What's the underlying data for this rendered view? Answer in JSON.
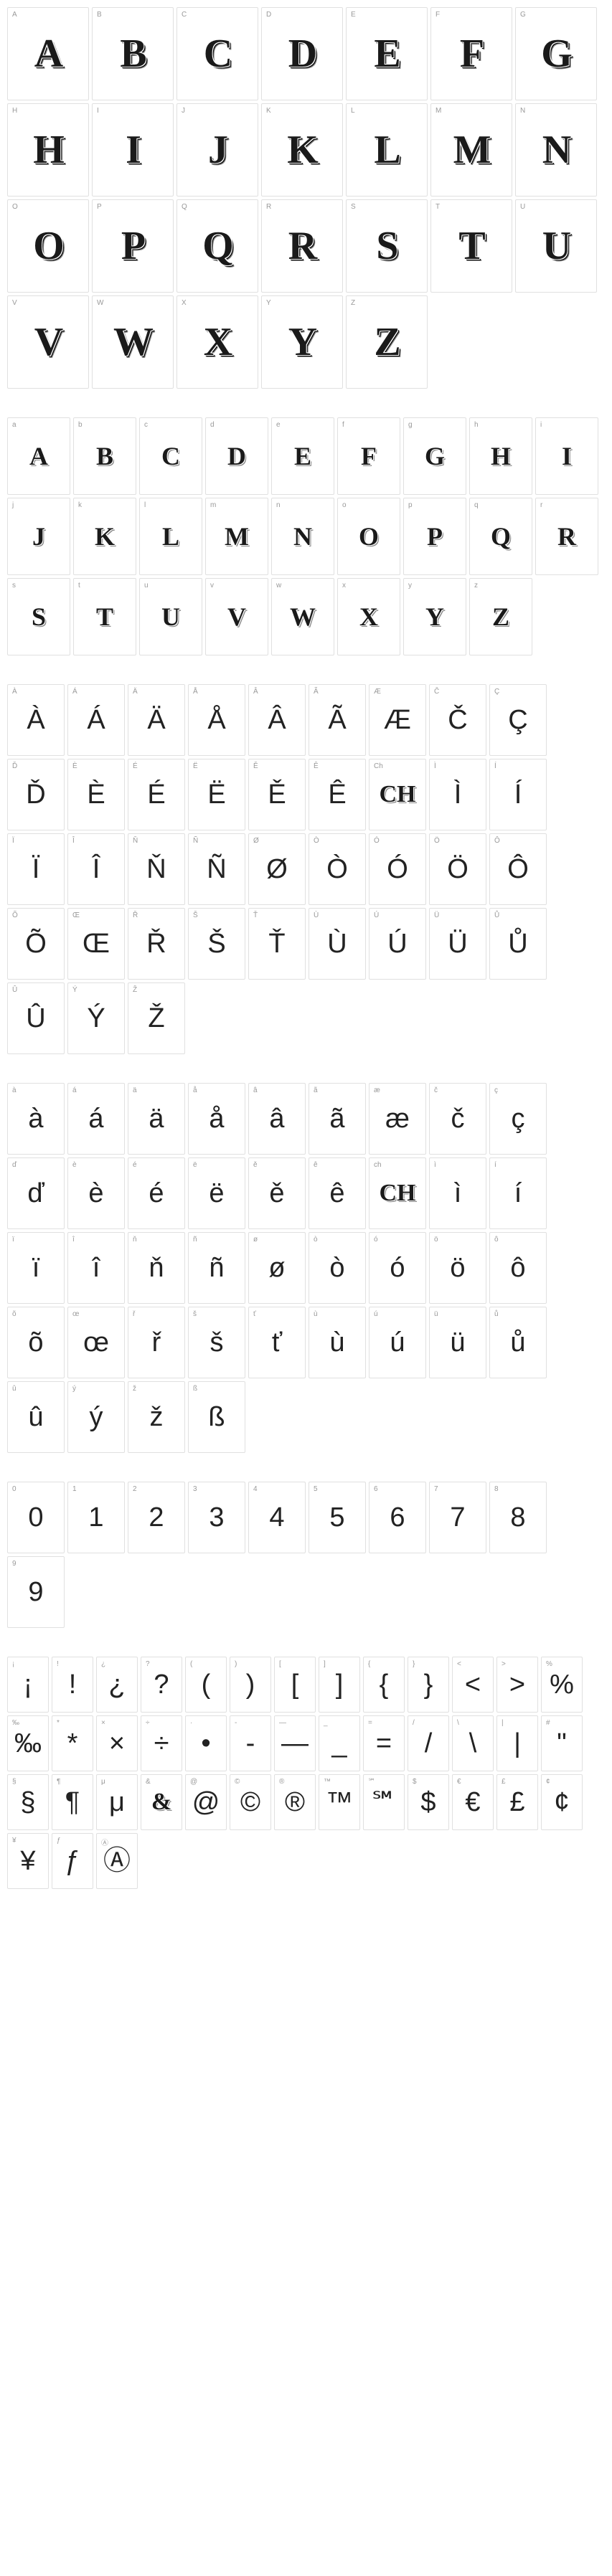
{
  "sections": [
    {
      "id": "uppercase",
      "cell_class": "cell-large",
      "glyph_class": "glyph-large",
      "cells": [
        {
          "label": "A",
          "glyph": "A"
        },
        {
          "label": "B",
          "glyph": "B"
        },
        {
          "label": "C",
          "glyph": "C"
        },
        {
          "label": "D",
          "glyph": "D"
        },
        {
          "label": "E",
          "glyph": "E"
        },
        {
          "label": "F",
          "glyph": "F"
        },
        {
          "label": "G",
          "glyph": "G"
        },
        {
          "label": "H",
          "glyph": "H"
        },
        {
          "label": "I",
          "glyph": "I"
        },
        {
          "label": "J",
          "glyph": "J"
        },
        {
          "label": "K",
          "glyph": "K"
        },
        {
          "label": "L",
          "glyph": "L"
        },
        {
          "label": "M",
          "glyph": "M"
        },
        {
          "label": "N",
          "glyph": "N"
        },
        {
          "label": "O",
          "glyph": "O"
        },
        {
          "label": "P",
          "glyph": "P"
        },
        {
          "label": "Q",
          "glyph": "Q"
        },
        {
          "label": "R",
          "glyph": "R"
        },
        {
          "label": "S",
          "glyph": "S"
        },
        {
          "label": "T",
          "glyph": "T"
        },
        {
          "label": "U",
          "glyph": "U"
        },
        {
          "label": "V",
          "glyph": "V"
        },
        {
          "label": "W",
          "glyph": "W"
        },
        {
          "label": "X",
          "glyph": "X"
        },
        {
          "label": "Y",
          "glyph": "Y"
        },
        {
          "label": "Z",
          "glyph": "Z"
        }
      ]
    },
    {
      "id": "lowercase",
      "cell_class": "cell-med",
      "glyph_class": "glyph-med",
      "cells": [
        {
          "label": "a",
          "glyph": "A"
        },
        {
          "label": "b",
          "glyph": "B"
        },
        {
          "label": "c",
          "glyph": "C"
        },
        {
          "label": "d",
          "glyph": "D"
        },
        {
          "label": "e",
          "glyph": "E"
        },
        {
          "label": "f",
          "glyph": "F"
        },
        {
          "label": "g",
          "glyph": "G"
        },
        {
          "label": "h",
          "glyph": "H"
        },
        {
          "label": "i",
          "glyph": "I"
        },
        {
          "label": "j",
          "glyph": "J"
        },
        {
          "label": "k",
          "glyph": "K"
        },
        {
          "label": "l",
          "glyph": "L"
        },
        {
          "label": "m",
          "glyph": "M"
        },
        {
          "label": "n",
          "glyph": "N"
        },
        {
          "label": "o",
          "glyph": "O"
        },
        {
          "label": "p",
          "glyph": "P"
        },
        {
          "label": "q",
          "glyph": "Q"
        },
        {
          "label": "r",
          "glyph": "R"
        },
        {
          "label": "s",
          "glyph": "S"
        },
        {
          "label": "t",
          "glyph": "T"
        },
        {
          "label": "u",
          "glyph": "U"
        },
        {
          "label": "v",
          "glyph": "V"
        },
        {
          "label": "w",
          "glyph": "W"
        },
        {
          "label": "x",
          "glyph": "X"
        },
        {
          "label": "y",
          "glyph": "Y"
        },
        {
          "label": "z",
          "glyph": "Z"
        }
      ]
    },
    {
      "id": "accented-upper",
      "cell_class": "cell-small",
      "glyph_class": "glyph-plain",
      "cells": [
        {
          "label": "À",
          "glyph": "À"
        },
        {
          "label": "Á",
          "glyph": "Á"
        },
        {
          "label": "Ä",
          "glyph": "Ä"
        },
        {
          "label": "Å",
          "glyph": "Å"
        },
        {
          "label": "Â",
          "glyph": "Â"
        },
        {
          "label": "Ã",
          "glyph": "Ã"
        },
        {
          "label": "Æ",
          "glyph": "Æ"
        },
        {
          "label": "Č",
          "glyph": "Č"
        },
        {
          "label": "Ç",
          "glyph": "Ç"
        },
        {
          "label": "Ď",
          "glyph": "Ď"
        },
        {
          "label": "È",
          "glyph": "È"
        },
        {
          "label": "É",
          "glyph": "É"
        },
        {
          "label": "Ë",
          "glyph": "Ë"
        },
        {
          "label": "Ě",
          "glyph": "Ě"
        },
        {
          "label": "Ê",
          "glyph": "Ê"
        },
        {
          "label": "Ch",
          "glyph": "CH",
          "decorated": true
        },
        {
          "label": "Ì",
          "glyph": "Ì"
        },
        {
          "label": "Í",
          "glyph": "Í"
        },
        {
          "label": "Ï",
          "glyph": "Ï"
        },
        {
          "label": "Î",
          "glyph": "Î"
        },
        {
          "label": "Ň",
          "glyph": "Ň"
        },
        {
          "label": "Ñ",
          "glyph": "Ñ"
        },
        {
          "label": "Ø",
          "glyph": "Ø"
        },
        {
          "label": "Ò",
          "glyph": "Ò"
        },
        {
          "label": "Ó",
          "glyph": "Ó"
        },
        {
          "label": "Ö",
          "glyph": "Ö"
        },
        {
          "label": "Ô",
          "glyph": "Ô"
        },
        {
          "label": "Õ",
          "glyph": "Õ"
        },
        {
          "label": "Œ",
          "glyph": "Œ"
        },
        {
          "label": "Ř",
          "glyph": "Ř"
        },
        {
          "label": "Š",
          "glyph": "Š"
        },
        {
          "label": "Ť",
          "glyph": "Ť"
        },
        {
          "label": "Ù",
          "glyph": "Ù"
        },
        {
          "label": "Ú",
          "glyph": "Ú"
        },
        {
          "label": "Ü",
          "glyph": "Ü"
        },
        {
          "label": "Ů",
          "glyph": "Ů"
        },
        {
          "label": "Û",
          "glyph": "Û"
        },
        {
          "label": "Ý",
          "glyph": "Ý"
        },
        {
          "label": "Ž",
          "glyph": "Ž"
        }
      ]
    },
    {
      "id": "accented-lower",
      "cell_class": "cell-small",
      "glyph_class": "glyph-plain",
      "cells": [
        {
          "label": "à",
          "glyph": "à"
        },
        {
          "label": "á",
          "glyph": "á"
        },
        {
          "label": "ä",
          "glyph": "ä"
        },
        {
          "label": "å",
          "glyph": "å"
        },
        {
          "label": "â",
          "glyph": "â"
        },
        {
          "label": "ã",
          "glyph": "ã"
        },
        {
          "label": "æ",
          "glyph": "æ"
        },
        {
          "label": "č",
          "glyph": "č"
        },
        {
          "label": "ç",
          "glyph": "ç"
        },
        {
          "label": "ď",
          "glyph": "ď"
        },
        {
          "label": "è",
          "glyph": "è"
        },
        {
          "label": "é",
          "glyph": "é"
        },
        {
          "label": "ë",
          "glyph": "ë"
        },
        {
          "label": "ě",
          "glyph": "ě"
        },
        {
          "label": "ê",
          "glyph": "ê"
        },
        {
          "label": "ch",
          "glyph": "CH",
          "decorated": true
        },
        {
          "label": "ì",
          "glyph": "ì"
        },
        {
          "label": "í",
          "glyph": "í"
        },
        {
          "label": "ï",
          "glyph": "ï"
        },
        {
          "label": "î",
          "glyph": "î"
        },
        {
          "label": "ň",
          "glyph": "ň"
        },
        {
          "label": "ñ",
          "glyph": "ñ"
        },
        {
          "label": "ø",
          "glyph": "ø"
        },
        {
          "label": "ò",
          "glyph": "ò"
        },
        {
          "label": "ó",
          "glyph": "ó"
        },
        {
          "label": "ö",
          "glyph": "ö"
        },
        {
          "label": "ô",
          "glyph": "ô"
        },
        {
          "label": "õ",
          "glyph": "õ"
        },
        {
          "label": "œ",
          "glyph": "œ"
        },
        {
          "label": "ř",
          "glyph": "ř"
        },
        {
          "label": "š",
          "glyph": "š"
        },
        {
          "label": "ť",
          "glyph": "ť"
        },
        {
          "label": "ù",
          "glyph": "ù"
        },
        {
          "label": "ú",
          "glyph": "ú"
        },
        {
          "label": "ü",
          "glyph": "ü"
        },
        {
          "label": "ů",
          "glyph": "ů"
        },
        {
          "label": "û",
          "glyph": "û"
        },
        {
          "label": "ý",
          "glyph": "ý"
        },
        {
          "label": "ž",
          "glyph": "ž"
        },
        {
          "label": "ß",
          "glyph": "ß"
        }
      ]
    },
    {
      "id": "digits",
      "cell_class": "cell-small",
      "glyph_class": "glyph-plain",
      "cells": [
        {
          "label": "0",
          "glyph": "0"
        },
        {
          "label": "1",
          "glyph": "1"
        },
        {
          "label": "2",
          "glyph": "2"
        },
        {
          "label": "3",
          "glyph": "3"
        },
        {
          "label": "4",
          "glyph": "4"
        },
        {
          "label": "5",
          "glyph": "5"
        },
        {
          "label": "6",
          "glyph": "6"
        },
        {
          "label": "7",
          "glyph": "7"
        },
        {
          "label": "8",
          "glyph": "8"
        },
        {
          "label": "9",
          "glyph": "9"
        }
      ]
    },
    {
      "id": "symbols",
      "cell_class": "cell-tiny",
      "glyph_class": "glyph-plain",
      "cells": [
        {
          "label": "¡",
          "glyph": "¡"
        },
        {
          "label": "!",
          "glyph": "!"
        },
        {
          "label": "¿",
          "glyph": "¿"
        },
        {
          "label": "?",
          "glyph": "?"
        },
        {
          "label": "(",
          "glyph": "("
        },
        {
          "label": ")",
          "glyph": ")"
        },
        {
          "label": "[",
          "glyph": "["
        },
        {
          "label": "]",
          "glyph": "]"
        },
        {
          "label": "{",
          "glyph": "{"
        },
        {
          "label": "}",
          "glyph": "}"
        },
        {
          "label": "<",
          "glyph": "<"
        },
        {
          "label": ">",
          "glyph": ">"
        },
        {
          "label": "%",
          "glyph": "%"
        },
        {
          "label": "‰",
          "glyph": "‰"
        },
        {
          "label": "*",
          "glyph": "*"
        },
        {
          "label": "×",
          "glyph": "×"
        },
        {
          "label": "÷",
          "glyph": "÷"
        },
        {
          "label": "·",
          "glyph": "•"
        },
        {
          "label": "-",
          "glyph": "-"
        },
        {
          "label": "—",
          "glyph": "—"
        },
        {
          "label": "_",
          "glyph": "_"
        },
        {
          "label": "=",
          "glyph": "="
        },
        {
          "label": "/",
          "glyph": "/"
        },
        {
          "label": "\\",
          "glyph": "\\"
        },
        {
          "label": "|",
          "glyph": "|"
        },
        {
          "label": "#",
          "glyph": "\""
        },
        {
          "label": "§",
          "glyph": "§"
        },
        {
          "label": "¶",
          "glyph": "¶"
        },
        {
          "label": "μ",
          "glyph": "μ"
        },
        {
          "label": "&",
          "glyph": "&",
          "decorated": true
        },
        {
          "label": "@",
          "glyph": "@"
        },
        {
          "label": "©",
          "glyph": "©"
        },
        {
          "label": "®",
          "glyph": "®"
        },
        {
          "label": "™",
          "glyph": "™"
        },
        {
          "label": "℠",
          "glyph": "℠"
        },
        {
          "label": "$",
          "glyph": "$"
        },
        {
          "label": "€",
          "glyph": "€"
        },
        {
          "label": "£",
          "glyph": "£"
        },
        {
          "label": "¢",
          "glyph": "¢"
        },
        {
          "label": "¥",
          "glyph": "¥"
        },
        {
          "label": "ƒ",
          "glyph": "ƒ"
        },
        {
          "label": "Ⓐ",
          "glyph": "Ⓐ"
        }
      ]
    }
  ]
}
